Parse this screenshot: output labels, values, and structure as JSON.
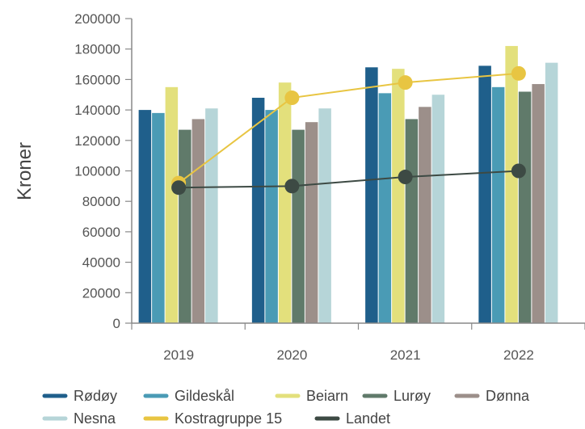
{
  "chart_data": {
    "type": "bar",
    "categories": [
      "2019",
      "2020",
      "2021",
      "2022"
    ],
    "ylabel": "Kroner",
    "ylim": [
      0,
      200000
    ],
    "yticks": [
      0,
      20000,
      40000,
      60000,
      80000,
      100000,
      120000,
      140000,
      160000,
      180000,
      200000
    ],
    "grid": false,
    "legend_position": "bottom",
    "series": [
      {
        "name": "Rødøy",
        "kind": "bar",
        "color": "#1f5f8b",
        "values": [
          140000,
          148000,
          168000,
          169000
        ]
      },
      {
        "name": "Gildeskål",
        "kind": "bar",
        "color": "#4a9bb5",
        "values": [
          138000,
          140000,
          151000,
          155000
        ]
      },
      {
        "name": "Beiarn",
        "kind": "bar",
        "color": "#e3e07c",
        "values": [
          155000,
          158000,
          167000,
          182000
        ]
      },
      {
        "name": "Lurøy",
        "kind": "bar",
        "color": "#607a6a",
        "values": [
          127000,
          127000,
          134000,
          152000
        ]
      },
      {
        "name": "Dønna",
        "kind": "bar",
        "color": "#9c8f8a",
        "values": [
          134000,
          132000,
          142000,
          157000
        ]
      },
      {
        "name": "Nesna",
        "kind": "bar",
        "color": "#b6d5d8",
        "values": [
          141000,
          141000,
          150000,
          171000
        ]
      },
      {
        "name": "Kostragruppe 15",
        "kind": "line",
        "color": "#e8c542",
        "values": [
          92000,
          148000,
          158000,
          164000
        ]
      },
      {
        "name": "Landet",
        "kind": "line",
        "color": "#3d4a44",
        "values": [
          89000,
          90000,
          96000,
          100000
        ]
      }
    ]
  }
}
